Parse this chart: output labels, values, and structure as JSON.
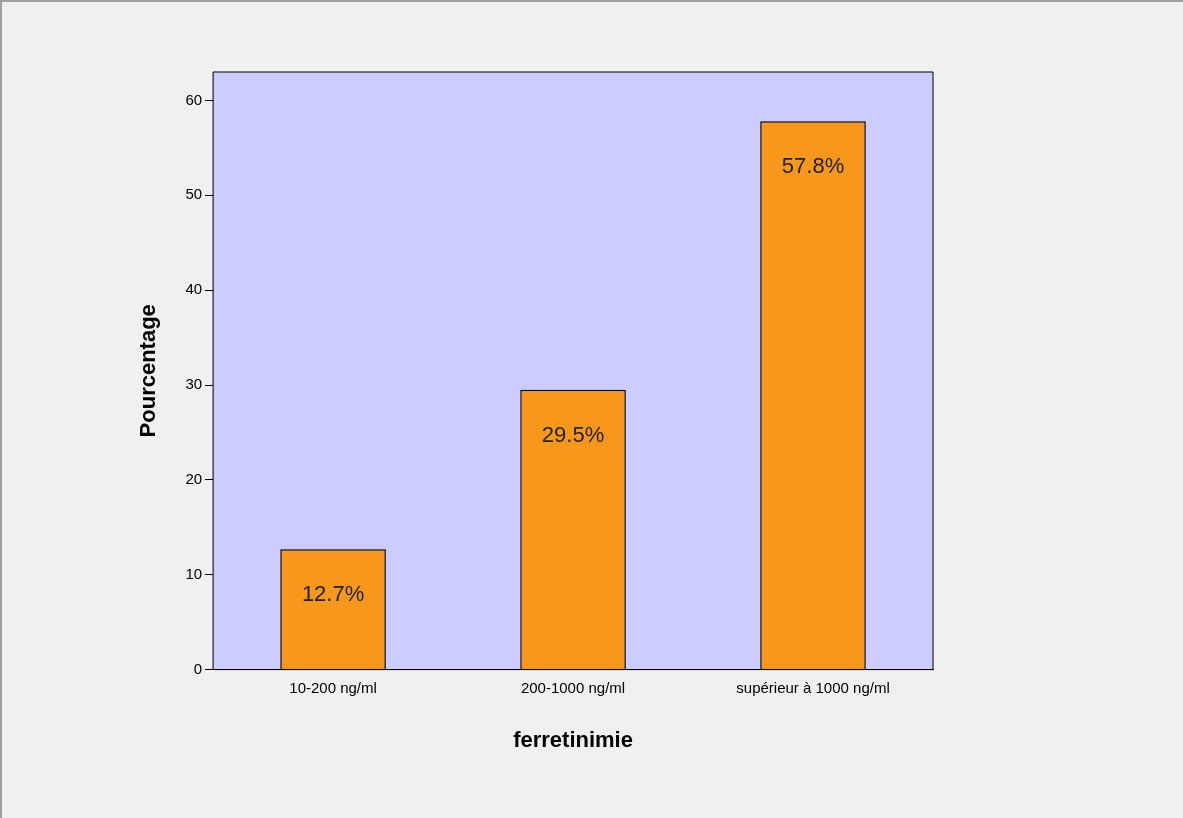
{
  "chart_data": {
    "type": "bar",
    "xlabel": "ferretinimie",
    "ylabel": "Pourcentage",
    "categories": [
      "10-200 ng/ml",
      "200-1000 ng/ml",
      "supérieur à 1000 ng/ml"
    ],
    "values": [
      12.7,
      29.5,
      57.8
    ],
    "color": "#f7981d",
    "value_labels": [
      "12.7%",
      "29.5%",
      "57.8%"
    ],
    "ylim": [
      0,
      63
    ],
    "yticks": [
      0,
      10,
      20,
      30,
      40,
      50,
      60
    ],
    "grid": false,
    "legend": false
  }
}
